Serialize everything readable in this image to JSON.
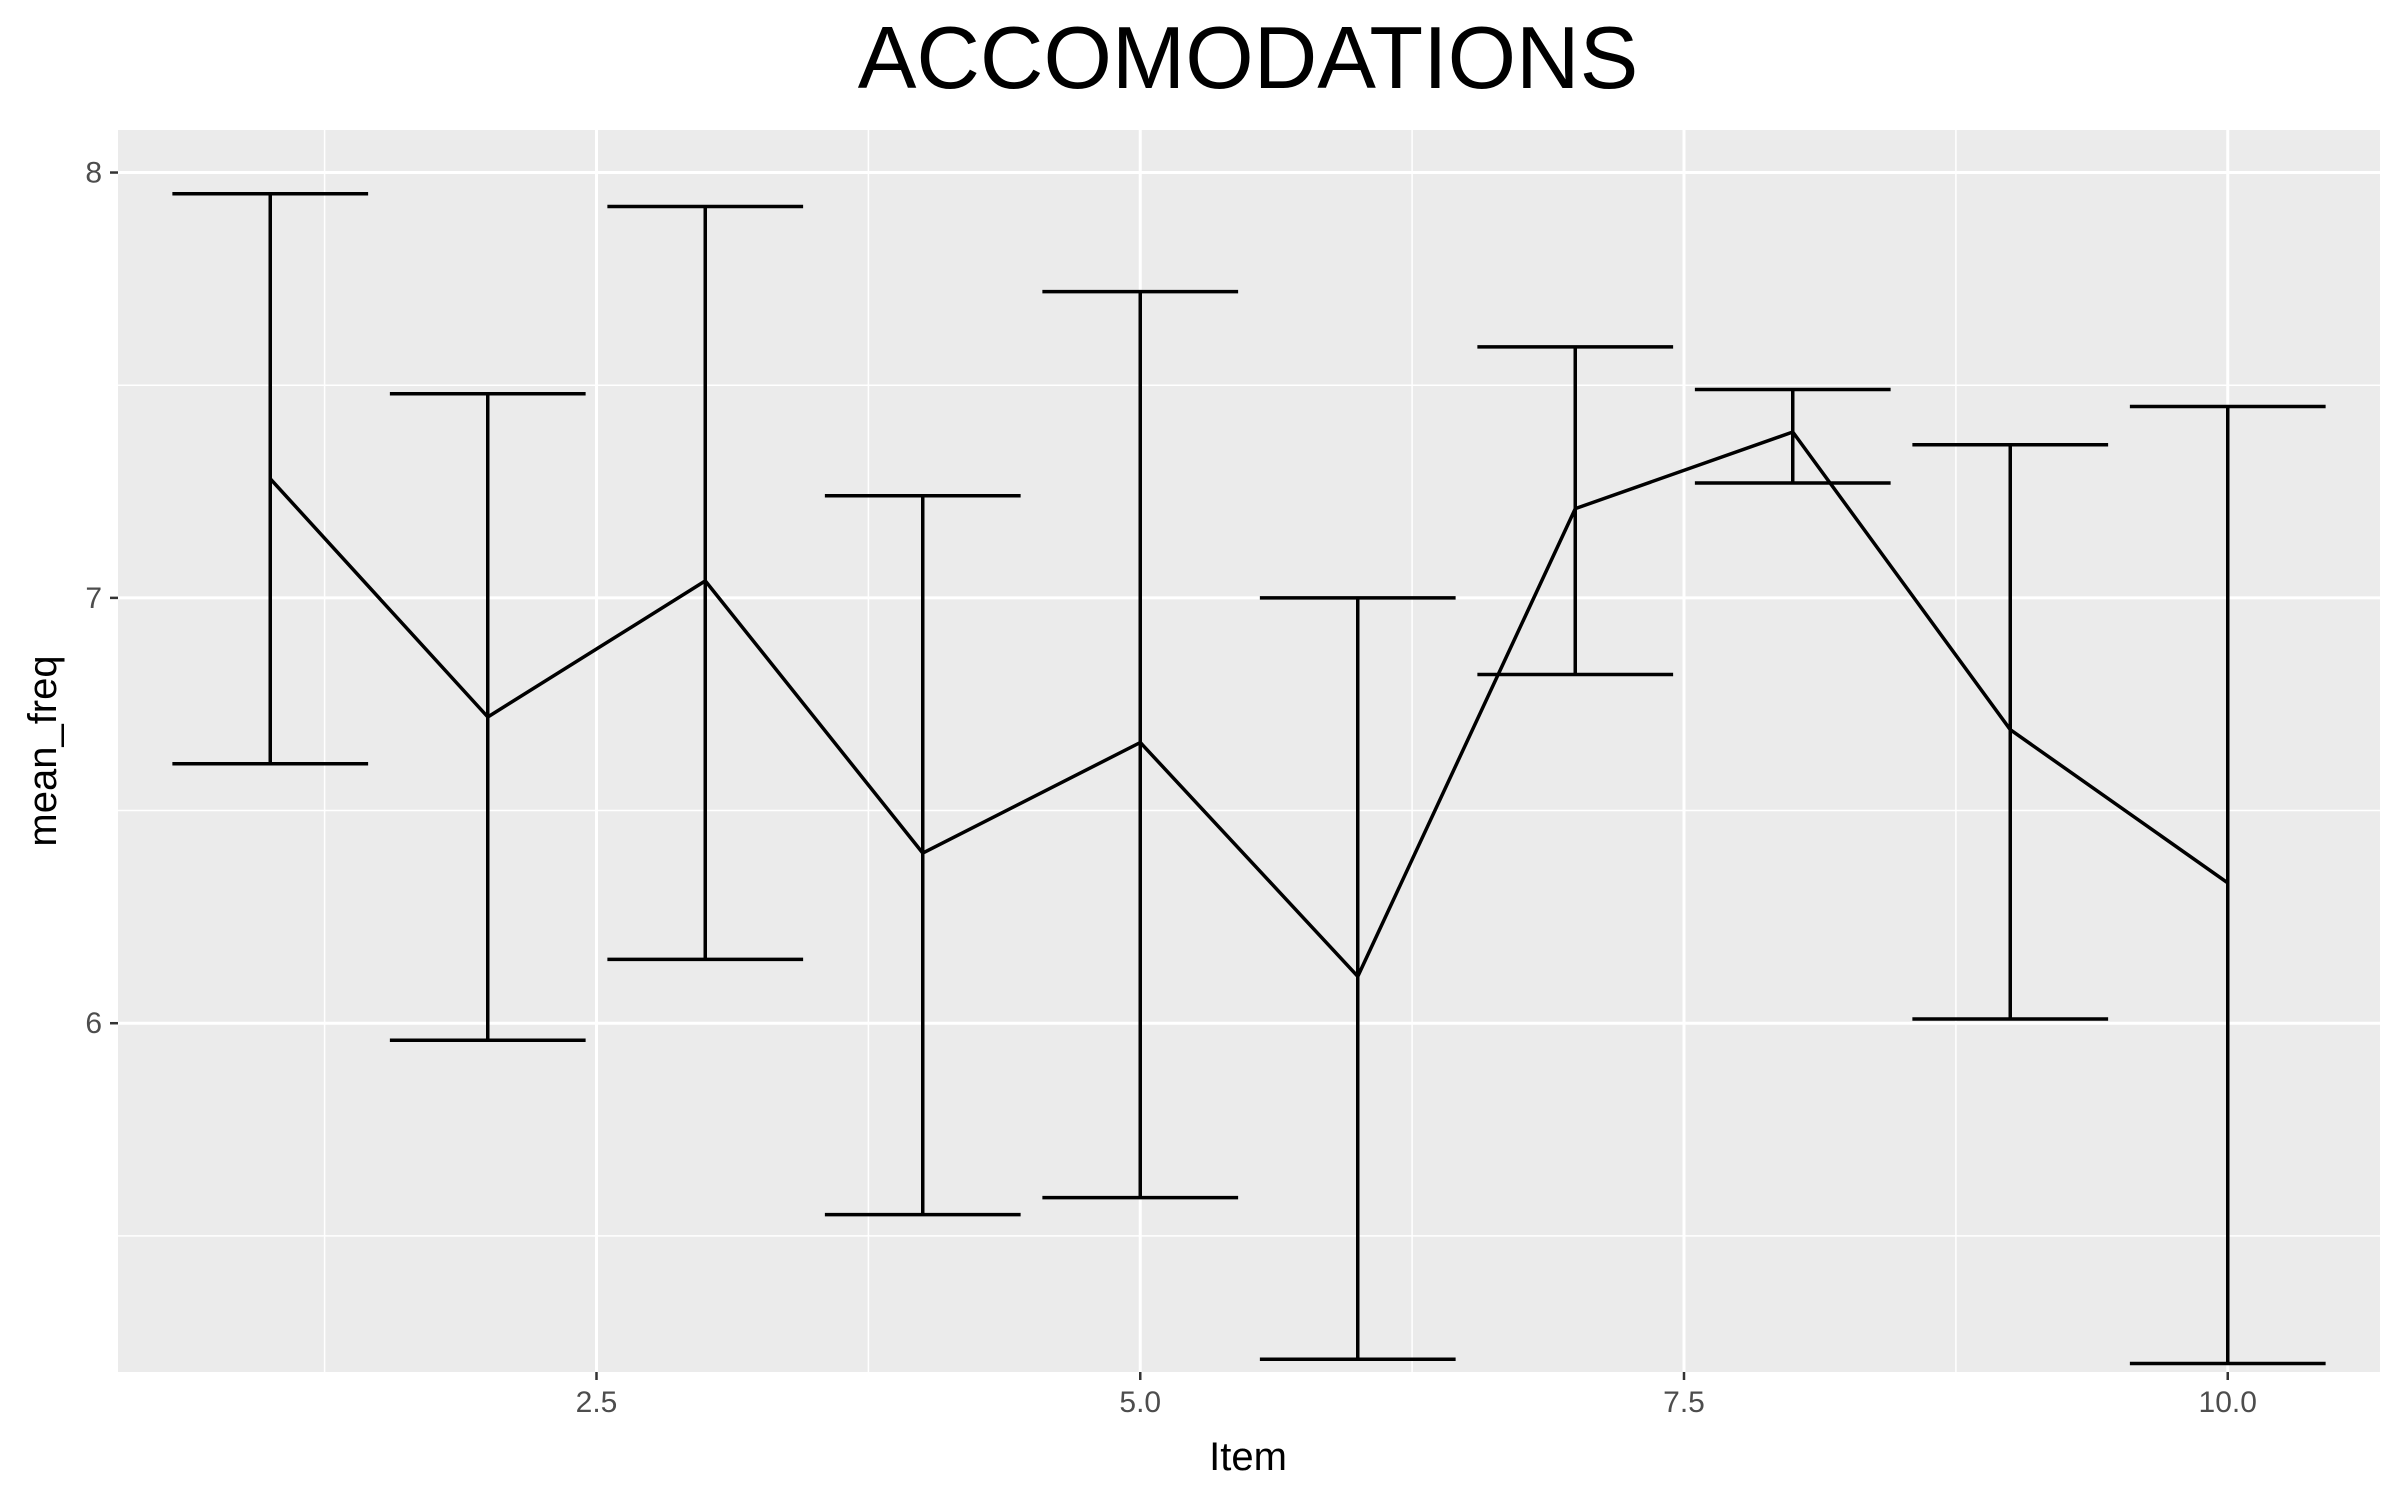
{
  "chart_data": {
    "type": "line",
    "title": "ACCOMODATIONS",
    "xlabel": "Item",
    "ylabel": "mean_freq",
    "xlim": [
      0.3,
      10.7
    ],
    "ylim": [
      5.18,
      8.1
    ],
    "x_ticks": [
      2.5,
      5.0,
      7.5,
      10.0
    ],
    "x_tick_labels": [
      "2.5",
      "5.0",
      "7.5",
      "10.0"
    ],
    "y_ticks": [
      6,
      7,
      8
    ],
    "y_tick_labels": [
      "6",
      "7",
      "8"
    ],
    "x_minor_gridlines": [
      1.25,
      3.75,
      6.25,
      8.75
    ],
    "y_minor_gridlines": [
      5.5,
      6.5,
      7.5
    ],
    "grid": true,
    "legend": "none",
    "colors": {
      "panel": "#ebebeb",
      "grid": "#ffffff",
      "line": "#000000",
      "tick_text": "#4d4d4d"
    },
    "series": [
      {
        "x": [
          1,
          2,
          3,
          4,
          5,
          6,
          7,
          8,
          9,
          10
        ],
        "y": [
          7.28,
          6.72,
          7.04,
          6.4,
          6.66,
          6.11,
          7.21,
          7.39,
          6.69,
          6.33
        ],
        "ymin": [
          6.61,
          5.96,
          6.15,
          5.55,
          5.59,
          5.21,
          6.82,
          7.27,
          6.01,
          5.2
        ],
        "ymax": [
          7.95,
          7.48,
          7.92,
          7.24,
          7.72,
          7.0,
          7.59,
          7.49,
          7.36,
          7.45
        ]
      }
    ]
  }
}
